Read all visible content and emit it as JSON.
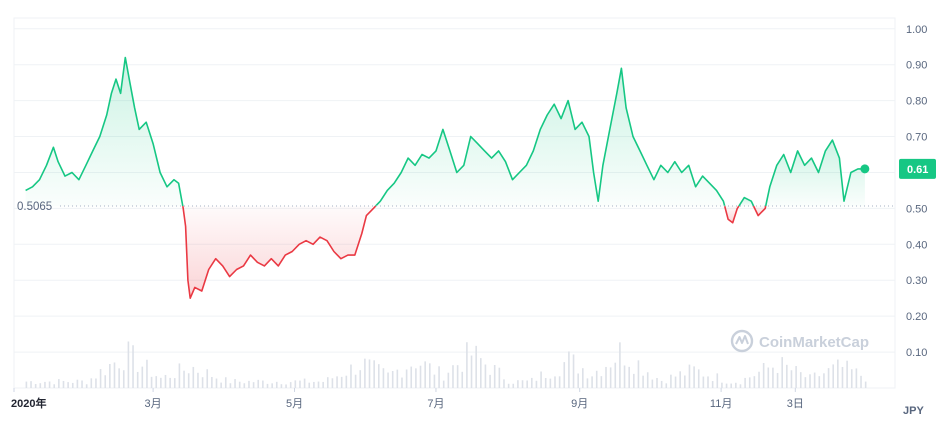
{
  "chart_data": {
    "type": "line",
    "currency": "JPY",
    "baseline_value": 0.5065,
    "baseline_label": "0.5065",
    "current_value": 0.61,
    "current_label": "0.61",
    "watermark": "CoinMarketCap",
    "ylim": [
      0,
      1.03
    ],
    "y_ticks": [
      {
        "value": 0.1,
        "label": "0.10"
      },
      {
        "value": 0.2,
        "label": "0.20"
      },
      {
        "value": 0.3,
        "label": "0.30"
      },
      {
        "value": 0.4,
        "label": "0.40"
      },
      {
        "value": 0.5,
        "label": "0.50"
      },
      {
        "value": 0.6,
        "label": "0.60"
      },
      {
        "value": 0.7,
        "label": "0.70"
      },
      {
        "value": 0.8,
        "label": "0.80"
      },
      {
        "value": 0.9,
        "label": "0.90"
      },
      {
        "value": 1.0,
        "label": "1.00"
      }
    ],
    "xlim": [
      "2020-01-01",
      "2021-01-15"
    ],
    "x_ticks": [
      {
        "date": "2020-01-01",
        "label": "2020年",
        "bold": true
      },
      {
        "date": "2020-03-01",
        "label": "3月"
      },
      {
        "date": "2020-05-01",
        "label": "5月"
      },
      {
        "date": "2020-07-01",
        "label": "7月"
      },
      {
        "date": "2020-09-01",
        "label": "9月"
      },
      {
        "date": "2020-11-01",
        "label": "11月"
      },
      {
        "date": "2020-12-03",
        "label": "3日"
      }
    ],
    "colors": {
      "up": "#16c784",
      "down": "#ea3943",
      "volume": "#dde1e8"
    },
    "series": [
      {
        "points": [
          [
            "2020-01-06",
            0.55
          ],
          [
            "2020-01-09",
            0.56
          ],
          [
            "2020-01-12",
            0.58
          ],
          [
            "2020-01-15",
            0.62
          ],
          [
            "2020-01-18",
            0.67
          ],
          [
            "2020-01-20",
            0.63
          ],
          [
            "2020-01-23",
            0.59
          ],
          [
            "2020-01-26",
            0.6
          ],
          [
            "2020-01-29",
            0.58
          ],
          [
            "2020-02-01",
            0.62
          ],
          [
            "2020-02-04",
            0.66
          ],
          [
            "2020-02-07",
            0.7
          ],
          [
            "2020-02-10",
            0.76
          ],
          [
            "2020-02-12",
            0.82
          ],
          [
            "2020-02-14",
            0.86
          ],
          [
            "2020-02-16",
            0.82
          ],
          [
            "2020-02-18",
            0.92
          ],
          [
            "2020-02-20",
            0.85
          ],
          [
            "2020-02-22",
            0.78
          ],
          [
            "2020-02-24",
            0.72
          ],
          [
            "2020-02-27",
            0.74
          ],
          [
            "2020-03-01",
            0.68
          ],
          [
            "2020-03-04",
            0.6
          ],
          [
            "2020-03-07",
            0.56
          ],
          [
            "2020-03-10",
            0.58
          ],
          [
            "2020-03-12",
            0.57
          ],
          [
            "2020-03-14",
            0.5
          ],
          [
            "2020-03-15",
            0.45
          ],
          [
            "2020-03-16",
            0.3
          ],
          [
            "2020-03-17",
            0.25
          ],
          [
            "2020-03-19",
            0.28
          ],
          [
            "2020-03-22",
            0.27
          ],
          [
            "2020-03-25",
            0.33
          ],
          [
            "2020-03-28",
            0.36
          ],
          [
            "2020-03-31",
            0.34
          ],
          [
            "2020-04-03",
            0.31
          ],
          [
            "2020-04-06",
            0.33
          ],
          [
            "2020-04-09",
            0.34
          ],
          [
            "2020-04-12",
            0.37
          ],
          [
            "2020-04-15",
            0.35
          ],
          [
            "2020-04-18",
            0.34
          ],
          [
            "2020-04-21",
            0.36
          ],
          [
            "2020-04-24",
            0.34
          ],
          [
            "2020-04-27",
            0.37
          ],
          [
            "2020-04-30",
            0.38
          ],
          [
            "2020-05-03",
            0.4
          ],
          [
            "2020-05-06",
            0.41
          ],
          [
            "2020-05-09",
            0.4
          ],
          [
            "2020-05-12",
            0.42
          ],
          [
            "2020-05-15",
            0.41
          ],
          [
            "2020-05-18",
            0.38
          ],
          [
            "2020-05-21",
            0.36
          ],
          [
            "2020-05-24",
            0.37
          ],
          [
            "2020-05-27",
            0.37
          ],
          [
            "2020-05-30",
            0.43
          ],
          [
            "2020-06-01",
            0.48
          ],
          [
            "2020-06-04",
            0.5
          ],
          [
            "2020-06-07",
            0.52
          ],
          [
            "2020-06-10",
            0.55
          ],
          [
            "2020-06-13",
            0.57
          ],
          [
            "2020-06-16",
            0.6
          ],
          [
            "2020-06-19",
            0.64
          ],
          [
            "2020-06-22",
            0.62
          ],
          [
            "2020-06-25",
            0.65
          ],
          [
            "2020-06-28",
            0.64
          ],
          [
            "2020-07-01",
            0.66
          ],
          [
            "2020-07-04",
            0.72
          ],
          [
            "2020-07-07",
            0.66
          ],
          [
            "2020-07-10",
            0.6
          ],
          [
            "2020-07-13",
            0.62
          ],
          [
            "2020-07-16",
            0.7
          ],
          [
            "2020-07-19",
            0.68
          ],
          [
            "2020-07-22",
            0.66
          ],
          [
            "2020-07-25",
            0.64
          ],
          [
            "2020-07-28",
            0.66
          ],
          [
            "2020-07-31",
            0.63
          ],
          [
            "2020-08-03",
            0.58
          ],
          [
            "2020-08-06",
            0.6
          ],
          [
            "2020-08-09",
            0.62
          ],
          [
            "2020-08-12",
            0.66
          ],
          [
            "2020-08-15",
            0.72
          ],
          [
            "2020-08-18",
            0.76
          ],
          [
            "2020-08-21",
            0.79
          ],
          [
            "2020-08-24",
            0.75
          ],
          [
            "2020-08-27",
            0.8
          ],
          [
            "2020-08-30",
            0.72
          ],
          [
            "2020-09-02",
            0.74
          ],
          [
            "2020-09-05",
            0.7
          ],
          [
            "2020-09-07",
            0.6
          ],
          [
            "2020-09-09",
            0.52
          ],
          [
            "2020-09-11",
            0.62
          ],
          [
            "2020-09-14",
            0.72
          ],
          [
            "2020-09-17",
            0.82
          ],
          [
            "2020-09-19",
            0.89
          ],
          [
            "2020-09-21",
            0.78
          ],
          [
            "2020-09-24",
            0.7
          ],
          [
            "2020-09-27",
            0.66
          ],
          [
            "2020-09-30",
            0.62
          ],
          [
            "2020-10-03",
            0.58
          ],
          [
            "2020-10-06",
            0.62
          ],
          [
            "2020-10-09",
            0.6
          ],
          [
            "2020-10-12",
            0.63
          ],
          [
            "2020-10-15",
            0.6
          ],
          [
            "2020-10-18",
            0.62
          ],
          [
            "2020-10-21",
            0.56
          ],
          [
            "2020-10-24",
            0.59
          ],
          [
            "2020-10-27",
            0.57
          ],
          [
            "2020-10-30",
            0.55
          ],
          [
            "2020-11-02",
            0.52
          ],
          [
            "2020-11-04",
            0.47
          ],
          [
            "2020-11-06",
            0.46
          ],
          [
            "2020-11-08",
            0.5
          ],
          [
            "2020-11-11",
            0.53
          ],
          [
            "2020-11-14",
            0.52
          ],
          [
            "2020-11-17",
            0.48
          ],
          [
            "2020-11-20",
            0.5
          ],
          [
            "2020-11-22",
            0.56
          ],
          [
            "2020-11-25",
            0.62
          ],
          [
            "2020-11-28",
            0.65
          ],
          [
            "2020-12-01",
            0.6
          ],
          [
            "2020-12-04",
            0.66
          ],
          [
            "2020-12-07",
            0.62
          ],
          [
            "2020-12-10",
            0.64
          ],
          [
            "2020-12-13",
            0.6
          ],
          [
            "2020-12-16",
            0.66
          ],
          [
            "2020-12-19",
            0.69
          ],
          [
            "2020-12-22",
            0.64
          ],
          [
            "2020-12-24",
            0.52
          ],
          [
            "2020-12-27",
            0.6
          ],
          [
            "2020-12-30",
            0.61
          ],
          [
            "2021-01-02",
            0.61
          ]
        ]
      }
    ],
    "volume_approx": [
      [
        "2020-02-18",
        0.09
      ],
      [
        "2020-03-17",
        0.05
      ],
      [
        "2020-05-30",
        0.06
      ],
      [
        "2020-06-22",
        0.07
      ],
      [
        "2020-07-16",
        0.09
      ],
      [
        "2020-08-27",
        0.07
      ],
      [
        "2020-09-19",
        0.1
      ],
      [
        "2020-10-20",
        0.04
      ],
      [
        "2020-11-25",
        0.06
      ],
      [
        "2020-12-22",
        0.05
      ]
    ]
  }
}
